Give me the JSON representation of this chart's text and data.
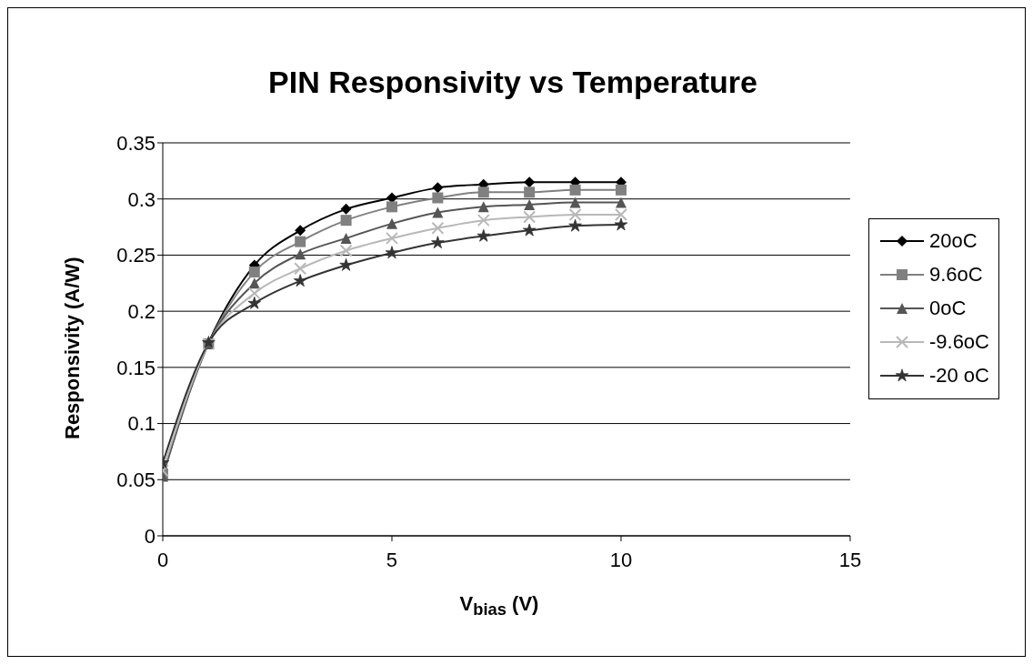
{
  "chart_data": {
    "type": "line",
    "title": "PIN Responsivity vs Temperature",
    "xlabel": "V$_{bias}$ (V)",
    "ylabel": "Responsivity (A/W)",
    "x": [
      0,
      1,
      2,
      3,
      4,
      5,
      6,
      7,
      8,
      9,
      10
    ],
    "series": [
      {
        "name": "20oC",
        "color": "#000000",
        "marker": "diamond",
        "values": [
          0.057,
          0.172,
          0.241,
          0.272,
          0.291,
          0.301,
          0.31,
          0.313,
          0.315,
          0.315,
          0.315
        ]
      },
      {
        "name": "9.6oC",
        "color": "#808080",
        "marker": "square",
        "values": [
          0.055,
          0.171,
          0.235,
          0.262,
          0.281,
          0.293,
          0.301,
          0.306,
          0.306,
          0.308,
          0.308
        ]
      },
      {
        "name": "0oC",
        "color": "#555555",
        "marker": "triangle",
        "values": [
          0.053,
          0.171,
          0.225,
          0.251,
          0.265,
          0.278,
          0.288,
          0.293,
          0.295,
          0.297,
          0.297
        ]
      },
      {
        "name": "-9.6oC",
        "color": "#b8b8b8",
        "marker": "cross",
        "values": [
          0.058,
          0.171,
          0.216,
          0.238,
          0.254,
          0.265,
          0.274,
          0.281,
          0.284,
          0.286,
          0.286
        ]
      },
      {
        "name": "-20 oC",
        "color": "#333333",
        "marker": "star",
        "values": [
          0.065,
          0.172,
          0.207,
          0.227,
          0.241,
          0.252,
          0.261,
          0.267,
          0.272,
          0.276,
          0.277
        ]
      }
    ],
    "xlim": [
      0,
      15
    ],
    "xticks": [
      0,
      5,
      10,
      15
    ],
    "ylim": [
      0,
      0.35
    ],
    "yticks": [
      0,
      0.05,
      0.1,
      0.15,
      0.2,
      0.25,
      0.3,
      0.35
    ],
    "grid": "y",
    "legend": "right"
  }
}
